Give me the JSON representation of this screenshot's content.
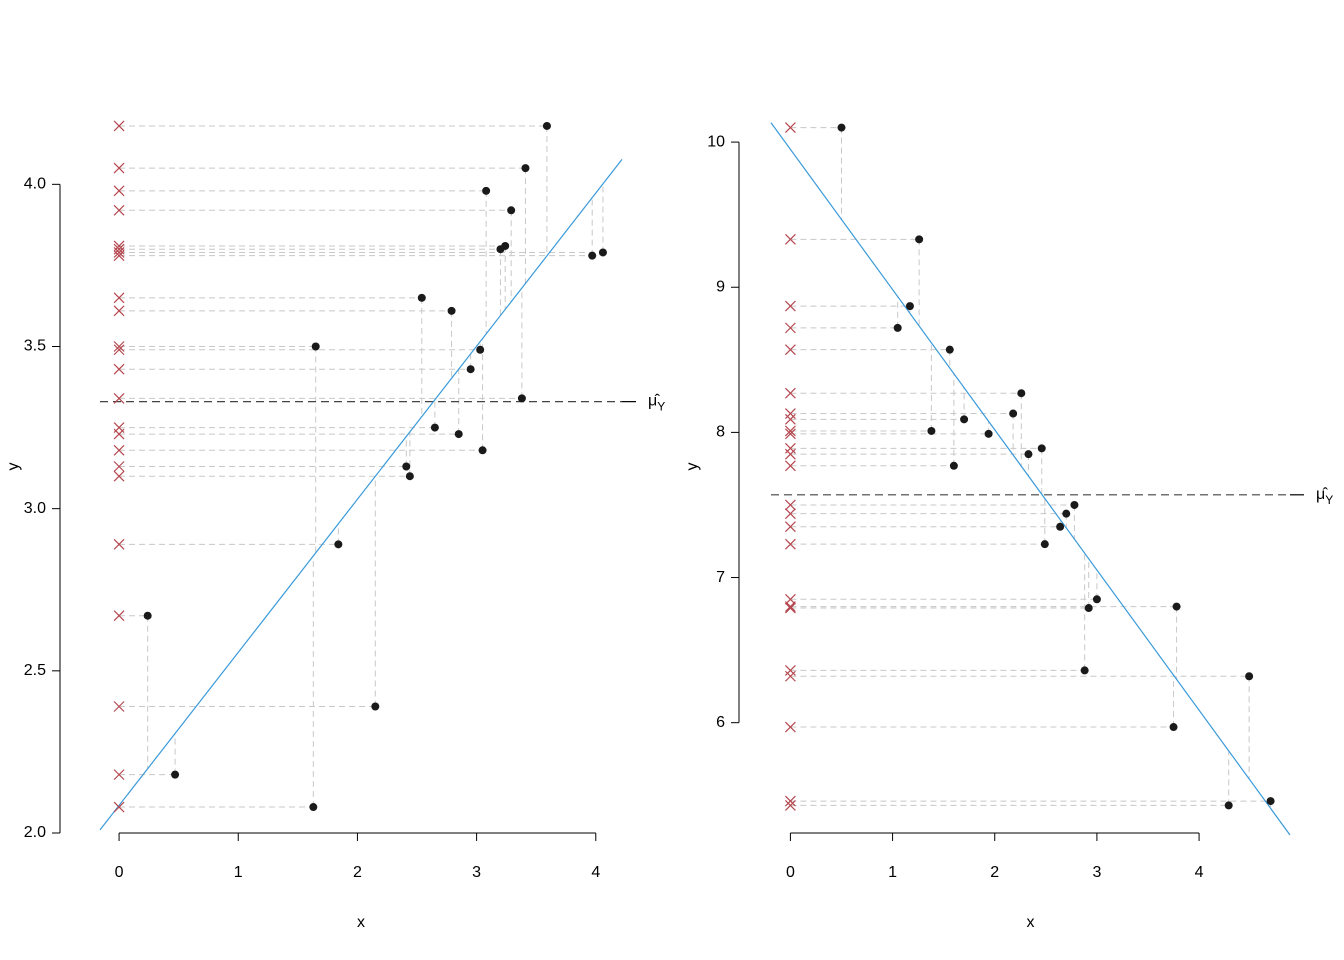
{
  "chart_data": [
    {
      "type": "scatter",
      "x_label": "x",
      "y_label": "y",
      "x": [
        3.59,
        3.41,
        3.08,
        3.29,
        3.24,
        3.2,
        3.97,
        4.06,
        2.54,
        2.79,
        1.65,
        3.03,
        2.95,
        3.38,
        2.65,
        2.85,
        3.05,
        2.41,
        2.44,
        1.84,
        0.24,
        2.15,
        0.47,
        1.63
      ],
      "values": [
        4.18,
        4.05,
        3.98,
        3.92,
        3.81,
        3.8,
        3.78,
        3.79,
        3.65,
        3.61,
        3.5,
        3.49,
        3.43,
        3.34,
        3.25,
        3.23,
        3.18,
        3.13,
        3.1,
        2.89,
        2.67,
        2.39,
        2.18,
        2.08
      ],
      "fit": {
        "intercept": 2.085,
        "slope": 0.472,
        "color": "#3a9ad9"
      },
      "mean": 3.33,
      "mean_label": "μ̂",
      "mean_label_sub": "Y",
      "point_color": "#1a1a1a",
      "projection_color": "#b5474f",
      "xlim": [
        -0.16,
        4.22
      ],
      "ylim": [
        2.0,
        4.26
      ],
      "xticks": [
        0,
        1,
        2,
        3,
        4
      ],
      "yticks": [
        {
          "value": 2.0,
          "label": "2.0"
        },
        2.5,
        {
          "value": 3.0,
          "label": "3.0"
        },
        3.5,
        {
          "value": 4.0,
          "label": "4.0"
        }
      ]
    },
    {
      "type": "scatter",
      "x_label": "x",
      "y_label": "y",
      "x": [
        0.5,
        1.26,
        1.17,
        1.05,
        1.56,
        2.26,
        2.18,
        1.7,
        1.38,
        1.94,
        2.46,
        2.33,
        1.6,
        2.78,
        2.7,
        2.64,
        2.49,
        3.0,
        2.92,
        3.78,
        2.88,
        4.49,
        3.75,
        4.29,
        4.7
      ],
      "values": [
        10.1,
        9.33,
        8.87,
        8.72,
        8.57,
        8.27,
        8.13,
        8.09,
        8.01,
        7.99,
        7.89,
        7.85,
        7.77,
        7.5,
        7.44,
        7.35,
        7.23,
        6.85,
        6.79,
        6.8,
        6.36,
        6.32,
        5.97,
        5.43,
        5.46
      ],
      "fit": {
        "intercept": 9.95,
        "slope": -0.966,
        "color": "#3a9ad9"
      },
      "mean": 7.57,
      "mean_label": "μ̂",
      "mean_label_sub": "Y",
      "point_color": "#1a1a1a",
      "projection_color": "#b5474f",
      "xlim": [
        -0.19,
        4.89
      ],
      "ylim": [
        5.24,
        10.29
      ],
      "xticks": [
        0,
        1,
        2,
        3,
        4
      ],
      "yticks": [
        6,
        7,
        8,
        9,
        10
      ]
    }
  ]
}
